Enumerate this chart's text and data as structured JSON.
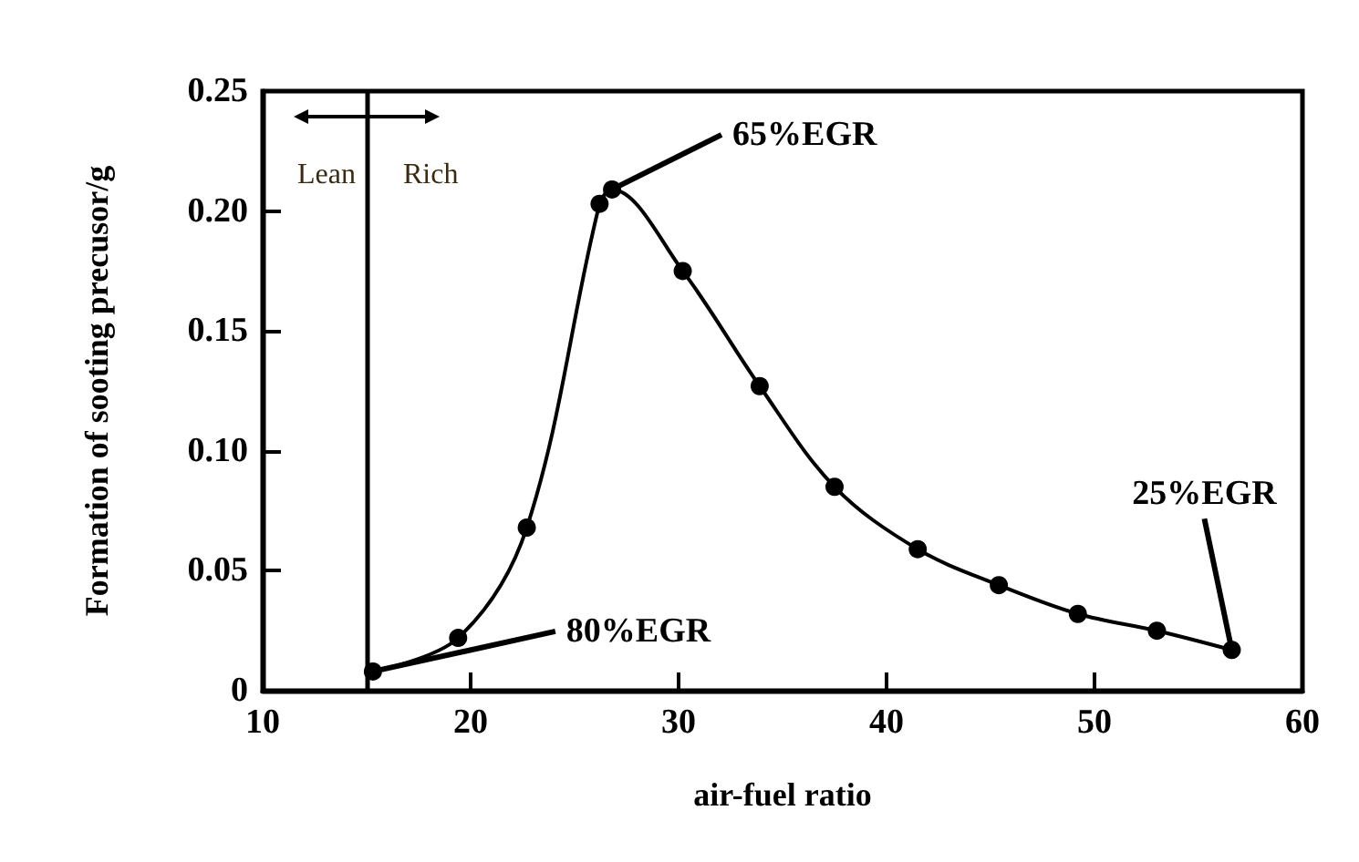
{
  "chart_data": {
    "type": "line",
    "xlabel": "air-fuel ratio",
    "ylabel": "Formation of sooting precusor/g",
    "series": [
      {
        "color": "#000000",
        "x": [
          15.3,
          19.4,
          22.7,
          26.2,
          26.8,
          30.2,
          33.9,
          37.5,
          41.5,
          45.4,
          49.2,
          53.0,
          56.6
        ],
        "values": [
          0.008,
          0.022,
          0.068,
          0.203,
          0.209,
          0.175,
          0.127,
          0.085,
          0.059,
          0.044,
          0.032,
          0.025,
          0.017
        ]
      }
    ],
    "xlim": [
      10,
      60
    ],
    "xticks": [
      10,
      20,
      30,
      40,
      50,
      60
    ],
    "ylim": [
      0,
      0.25
    ],
    "yticks": [
      0,
      0.05,
      {
        "value": 0.1,
        "label": "0.10"
      },
      0.15,
      {
        "value": 0.2,
        "label": "0.20"
      },
      0.25
    ],
    "ref_lines": [
      {
        "axis": "x",
        "value": 15,
        "color": "#000000"
      }
    ],
    "annotations": [
      "Lean",
      "Rich",
      {
        "text": "65%EGR",
        "x": 26.8,
        "y": 0.209
      },
      {
        "text": "80%EGR",
        "x": 15.3,
        "y": 0.008
      },
      {
        "text": "25%EGR",
        "x": 56.6,
        "y": 0.017
      }
    ],
    "grid": false,
    "marker": "circle",
    "line_style": "solid"
  }
}
